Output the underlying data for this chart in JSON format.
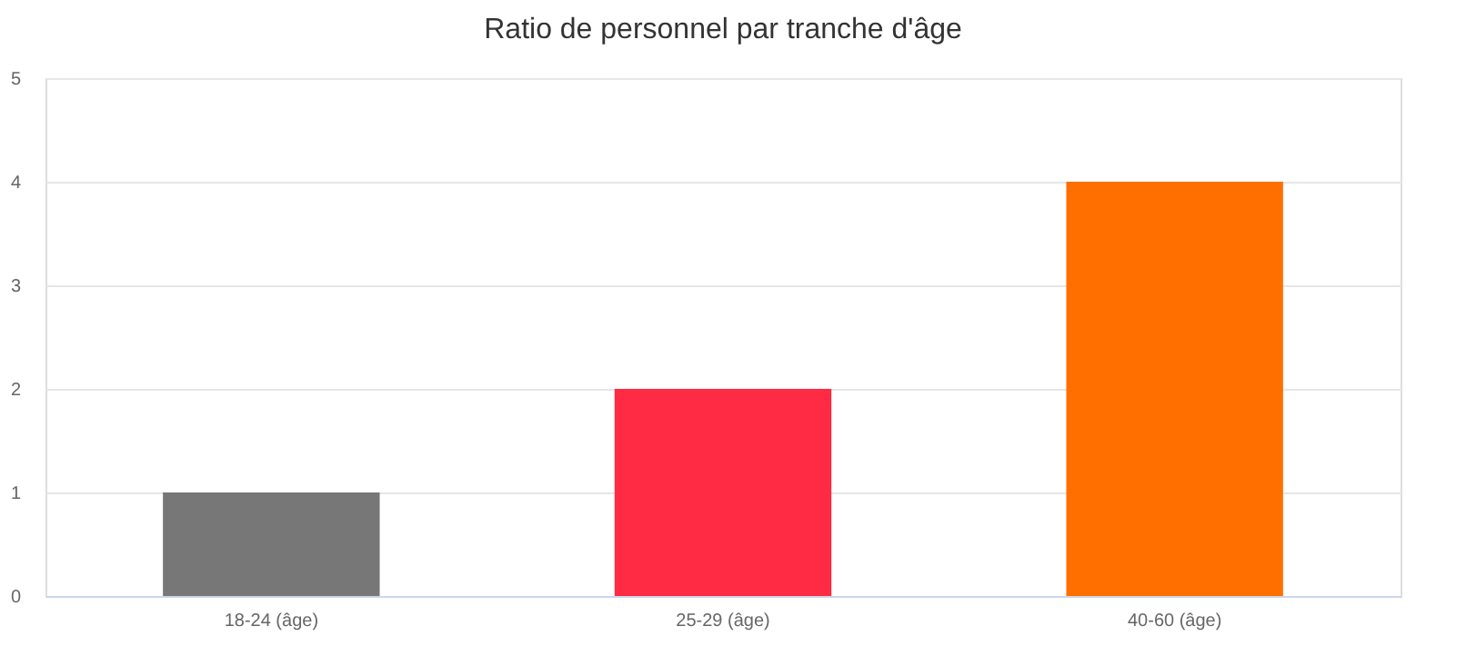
{
  "chart_data": {
    "type": "bar",
    "title": "Ratio de personnel par tranche d'âge",
    "categories": [
      "18-24 (âge)",
      "25-29 (âge)",
      "40-60 (âge)"
    ],
    "values": [
      1,
      2,
      4
    ],
    "colors": [
      "#777777",
      "#ff2a44",
      "#ff6f00"
    ],
    "ylim": [
      0,
      5
    ],
    "yticks": [
      0,
      1,
      2,
      3,
      4,
      5
    ],
    "grid": "y"
  }
}
